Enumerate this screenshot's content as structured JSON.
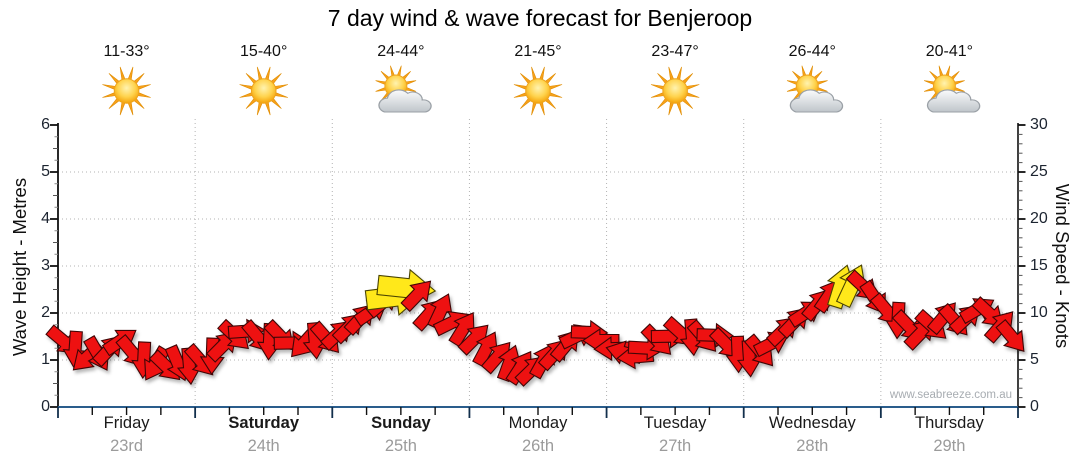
{
  "page": {
    "title": "7 day wind & wave forecast for Benjeroop",
    "watermark": "www.seabreeze.com.au"
  },
  "days": [
    {
      "name": "Friday",
      "date": "23rd",
      "temp": "11-33°",
      "icon": "sunny",
      "bold": false
    },
    {
      "name": "Saturday",
      "date": "24th",
      "temp": "15-40°",
      "icon": "sunny",
      "bold": true
    },
    {
      "name": "Sunday",
      "date": "25th",
      "temp": "24-44°",
      "icon": "partly-cloudy",
      "bold": true
    },
    {
      "name": "Monday",
      "date": "26th",
      "temp": "21-45°",
      "icon": "sunny",
      "bold": false
    },
    {
      "name": "Tuesday",
      "date": "27th",
      "temp": "23-47°",
      "icon": "sunny",
      "bold": false
    },
    {
      "name": "Wednesday",
      "date": "28th",
      "temp": "26-44°",
      "icon": "partly-cloudy",
      "bold": false
    },
    {
      "name": "Thursday",
      "date": "29th",
      "temp": "20-41°",
      "icon": "partly-cloudy",
      "bold": false
    }
  ],
  "axes": {
    "left": {
      "label": "Wave Height - Metres",
      "ticks": [
        0,
        1,
        2,
        3,
        4,
        5,
        6
      ]
    },
    "right": {
      "label": "Wind Speed - Knots",
      "ticks": [
        0,
        5,
        10,
        15,
        20,
        25,
        30
      ]
    }
  },
  "chart_data": {
    "type": "wind-arrow-series",
    "title": "7 day wind & wave forecast for Benjeroop",
    "categories": [
      "Friday 23rd",
      "Saturday 24th",
      "Sunday 25th",
      "Monday 26th",
      "Tuesday 27th",
      "Wednesday 28th",
      "Thursday 29th"
    ],
    "left_axis": {
      "label": "Wave Height - Metres",
      "range": [
        0,
        6
      ],
      "gridlines": [
        1,
        2,
        3,
        4,
        5
      ]
    },
    "right_axis": {
      "label": "Wind Speed - Knots",
      "range": [
        0,
        30
      ],
      "gridlines": [
        5,
        10,
        15,
        20,
        25
      ]
    },
    "points_per_day": 12,
    "wind_knots": [
      6.8,
      6.0,
      5.2,
      5.6,
      6.2,
      7.2,
      6.0,
      4.8,
      4.4,
      4.2,
      4.6,
      4.4,
      5.0,
      5.6,
      6.4,
      7.4,
      8.0,
      7.4,
      7.0,
      7.6,
      7.0,
      6.6,
      6.9,
      7.2,
      7.8,
      8.6,
      9.6,
      10.4,
      11.0,
      11.6,
      12.6,
      12.0,
      10.0,
      10.4,
      9.2,
      8.2,
      7.2,
      6.2,
      5.4,
      4.8,
      4.4,
      4.2,
      4.8,
      5.6,
      6.6,
      7.6,
      8.0,
      7.2,
      6.4,
      5.6,
      5.2,
      6.2,
      7.0,
      7.6,
      8.0,
      7.6,
      7.2,
      7.5,
      6.6,
      5.6,
      5.2,
      6.0,
      7.0,
      8.0,
      9.0,
      10.0,
      11.0,
      12.0,
      13.0,
      13.2,
      12.6,
      11.4,
      10.2,
      9.2,
      8.6,
      8.0,
      8.8,
      9.4,
      9.0,
      9.4,
      10.4,
      10.0,
      8.8,
      7.6
    ],
    "directions_deg": [
      45,
      90,
      135,
      60,
      315,
      330,
      45,
      90,
      120,
      45,
      70,
      90,
      45,
      90,
      315,
      45,
      0,
      45,
      90,
      45,
      0,
      135,
      90,
      45,
      315,
      315,
      315,
      330,
      315,
      350,
      5,
      315,
      315,
      300,
      330,
      300,
      315,
      300,
      315,
      285,
      300,
      315,
      300,
      315,
      315,
      330,
      0,
      180,
      180,
      200,
      170,
      0,
      45,
      0,
      45,
      90,
      45,
      0,
      45,
      90,
      90,
      45,
      330,
      315,
      315,
      330,
      315,
      300,
      285,
      295,
      45,
      60,
      45,
      90,
      45,
      315,
      45,
      315,
      45,
      315,
      330,
      45,
      315,
      45
    ],
    "strong_points": [
      {
        "index": 29,
        "scale": 1.6
      },
      {
        "index": 30,
        "scale": 1.6
      },
      {
        "index": 68,
        "scale": 1.2
      },
      {
        "index": 69,
        "scale": 1.2
      }
    ],
    "colors": {
      "arrow": "#ee1111",
      "arrow_strong": "#ffe81a",
      "grid": "#b3b3b3",
      "x_axis_line": "#2a5d8c",
      "axis_text": "#1c2430",
      "date_text": "#9b9b9b"
    }
  }
}
